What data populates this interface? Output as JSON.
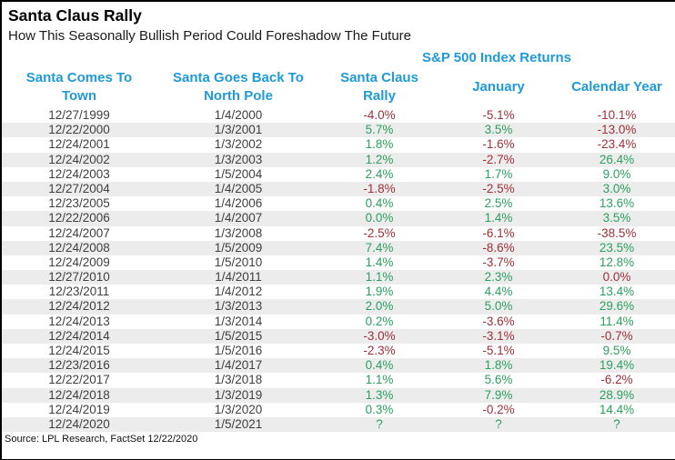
{
  "colors": {
    "accent_blue": "#1f9ad6",
    "positive_green": "#2ba05f",
    "negative_red": "#a03038",
    "stripe_gray": "#ececec"
  },
  "chart_data": {
    "type": "table",
    "title": "Santa Claus Rally",
    "subtitle": "How This Seasonally Bullish Period Could Foreshadow The Future",
    "group_header": "S&P 500 Index Returns",
    "columns": [
      {
        "line1": "Santa Comes To",
        "line2": "Town"
      },
      {
        "line1": "Santa Goes Back To",
        "line2": "North Pole"
      },
      {
        "line1": "Santa Claus",
        "line2": "Rally"
      },
      {
        "line1": "January",
        "line2": ""
      },
      {
        "line1": "Calendar Year",
        "line2": ""
      }
    ],
    "rows": [
      {
        "dates": [
          "12/27/1999",
          "1/4/2000"
        ],
        "values": [
          "-4.0%",
          "-5.1%",
          "-10.1%"
        ],
        "tones": [
          "neg",
          "neg",
          "neg"
        ]
      },
      {
        "dates": [
          "12/22/2000",
          "1/3/2001"
        ],
        "values": [
          "5.7%",
          "3.5%",
          "-13.0%"
        ],
        "tones": [
          "pos",
          "pos",
          "neg"
        ]
      },
      {
        "dates": [
          "12/24/2001",
          "1/3/2002"
        ],
        "values": [
          "1.8%",
          "-1.6%",
          "-23.4%"
        ],
        "tones": [
          "pos",
          "neg",
          "neg"
        ]
      },
      {
        "dates": [
          "12/24/2002",
          "1/3/2003"
        ],
        "values": [
          "1.2%",
          "-2.7%",
          "26.4%"
        ],
        "tones": [
          "pos",
          "neg",
          "pos"
        ]
      },
      {
        "dates": [
          "12/24/2003",
          "1/5/2004"
        ],
        "values": [
          "2.4%",
          "1.7%",
          "9.0%"
        ],
        "tones": [
          "pos",
          "pos",
          "pos"
        ]
      },
      {
        "dates": [
          "12/27/2004",
          "1/4/2005"
        ],
        "values": [
          "-1.8%",
          "-2.5%",
          "3.0%"
        ],
        "tones": [
          "neg",
          "neg",
          "pos"
        ]
      },
      {
        "dates": [
          "12/23/2005",
          "1/4/2006"
        ],
        "values": [
          "0.4%",
          "2.5%",
          "13.6%"
        ],
        "tones": [
          "pos",
          "pos",
          "pos"
        ]
      },
      {
        "dates": [
          "12/22/2006",
          "1/4/2007"
        ],
        "values": [
          "0.0%",
          "1.4%",
          "3.5%"
        ],
        "tones": [
          "pos",
          "pos",
          "pos"
        ]
      },
      {
        "dates": [
          "12/24/2007",
          "1/3/2008"
        ],
        "values": [
          "-2.5%",
          "-6.1%",
          "-38.5%"
        ],
        "tones": [
          "neg",
          "neg",
          "neg"
        ]
      },
      {
        "dates": [
          "12/24/2008",
          "1/5/2009"
        ],
        "values": [
          "7.4%",
          "-8.6%",
          "23.5%"
        ],
        "tones": [
          "pos",
          "neg",
          "pos"
        ]
      },
      {
        "dates": [
          "12/24/2009",
          "1/5/2010"
        ],
        "values": [
          "1.4%",
          "-3.7%",
          "12.8%"
        ],
        "tones": [
          "pos",
          "neg",
          "pos"
        ]
      },
      {
        "dates": [
          "12/27/2010",
          "1/4/2011"
        ],
        "values": [
          "1.1%",
          "2.3%",
          "0.0%"
        ],
        "tones": [
          "pos",
          "pos",
          "neg"
        ]
      },
      {
        "dates": [
          "12/23/2011",
          "1/4/2012"
        ],
        "values": [
          "1.9%",
          "4.4%",
          "13.4%"
        ],
        "tones": [
          "pos",
          "pos",
          "pos"
        ]
      },
      {
        "dates": [
          "12/24/2012",
          "1/3/2013"
        ],
        "values": [
          "2.0%",
          "5.0%",
          "29.6%"
        ],
        "tones": [
          "pos",
          "pos",
          "pos"
        ]
      },
      {
        "dates": [
          "12/24/2013",
          "1/3/2014"
        ],
        "values": [
          "0.2%",
          "-3.6%",
          "11.4%"
        ],
        "tones": [
          "pos",
          "neg",
          "pos"
        ]
      },
      {
        "dates": [
          "12/24/2014",
          "1/5/2015"
        ],
        "values": [
          "-3.0%",
          "-3.1%",
          "-0.7%"
        ],
        "tones": [
          "neg",
          "neg",
          "neg"
        ]
      },
      {
        "dates": [
          "12/24/2015",
          "1/5/2016"
        ],
        "values": [
          "-2.3%",
          "-5.1%",
          "9.5%"
        ],
        "tones": [
          "neg",
          "neg",
          "pos"
        ]
      },
      {
        "dates": [
          "12/23/2016",
          "1/4/2017"
        ],
        "values": [
          "0.4%",
          "1.8%",
          "19.4%"
        ],
        "tones": [
          "pos",
          "pos",
          "pos"
        ]
      },
      {
        "dates": [
          "12/22/2017",
          "1/3/2018"
        ],
        "values": [
          "1.1%",
          "5.6%",
          "-6.2%"
        ],
        "tones": [
          "pos",
          "pos",
          "neg"
        ]
      },
      {
        "dates": [
          "12/24/2018",
          "1/3/2019"
        ],
        "values": [
          "1.3%",
          "7.9%",
          "28.9%"
        ],
        "tones": [
          "pos",
          "pos",
          "pos"
        ]
      },
      {
        "dates": [
          "12/24/2019",
          "1/3/2020"
        ],
        "values": [
          "0.3%",
          "-0.2%",
          "14.4%"
        ],
        "tones": [
          "pos",
          "neg",
          "pos"
        ]
      },
      {
        "dates": [
          "12/24/2020",
          "1/5/2021"
        ],
        "values": [
          "?",
          "?",
          "?"
        ],
        "tones": [
          "pos",
          "pos",
          "pos"
        ]
      }
    ],
    "source": "Source: LPL Research, FactSet 12/22/2020"
  }
}
